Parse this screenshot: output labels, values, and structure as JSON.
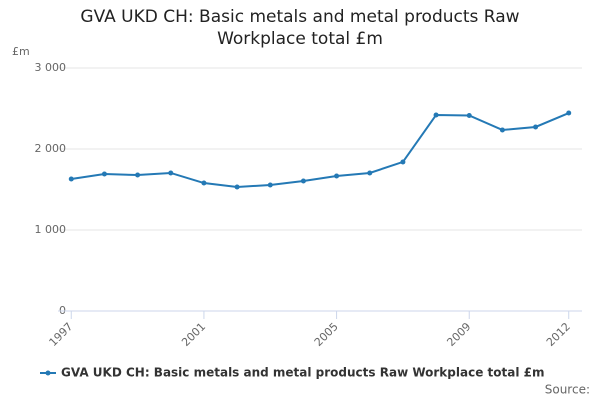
{
  "chart_data": {
    "type": "line",
    "title": "GVA UKD CH: Basic metals and metal products Raw Workplace total £m",
    "y_label": "£m",
    "source": "Source:",
    "x": [
      1997,
      1998,
      1999,
      2000,
      2001,
      2002,
      2003,
      2004,
      2005,
      2006,
      2007,
      2008,
      2009,
      2010,
      2011,
      2012
    ],
    "series": [
      {
        "name": "GVA UKD CH: Basic metals and metal products Raw Workplace total £m",
        "color": "#2479b5",
        "values": [
          1630,
          1691,
          1679,
          1704,
          1580,
          1531,
          1556,
          1605,
          1667,
          1704,
          1840,
          2420,
          2414,
          2235,
          2272,
          2444
        ]
      }
    ],
    "xlim": [
      1996.6,
      2012.4
    ],
    "xticks": [
      1997,
      2001,
      2005,
      2009,
      2012
    ],
    "ylim": [
      0,
      3000
    ],
    "yticks": [
      0,
      {
        "value": 1000,
        "label": "1 000"
      },
      {
        "value": 2000,
        "label": "2 000"
      },
      {
        "value": 3000,
        "label": "3 000"
      }
    ],
    "grid": true
  }
}
